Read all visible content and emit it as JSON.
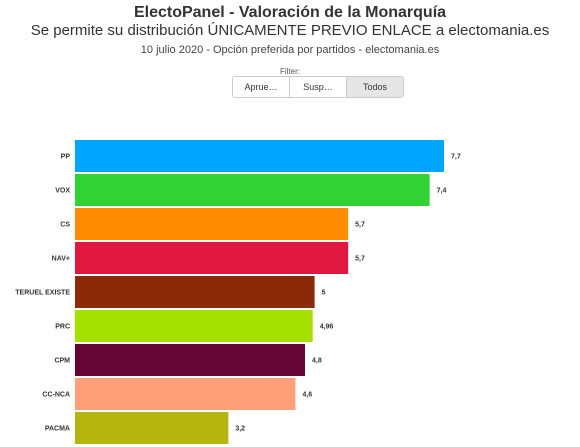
{
  "header": {
    "title": "ElectoPanel - Valoración de la Monarquía",
    "subtitle": "Se permite su distribución ÚNICAMENTE PREVIO ENLACE a electomania.es",
    "note": "10 julio 2020 - Opción preferida por partidos - electomania.es"
  },
  "filter": {
    "label": "Filter:",
    "options": [
      "Aprue…",
      "Susp…",
      "Todos"
    ],
    "active": "Todos"
  },
  "chart_data": {
    "type": "bar",
    "orientation": "horizontal",
    "categories": [
      "PP",
      "VOX",
      "CS",
      "NAV+",
      "TERUEL EXISTE",
      "PRC",
      "CPM",
      "CC-NCA",
      "PACMA"
    ],
    "values": [
      7.7,
      7.4,
      5.7,
      5.7,
      5,
      4.96,
      4.8,
      4.6,
      3.2
    ],
    "value_labels": [
      "7,7",
      "7,4",
      "5,7",
      "5,7",
      "5",
      "4,96",
      "4,8",
      "4,6",
      "3,2"
    ],
    "colors": [
      "#00a5ff",
      "#32d235",
      "#ff8c00",
      "#e0173e",
      "#8b2a09",
      "#a5e000",
      "#630535",
      "#ffa07a",
      "#b5b50f"
    ],
    "xlim": [
      0,
      7.7
    ],
    "grid": false
  }
}
